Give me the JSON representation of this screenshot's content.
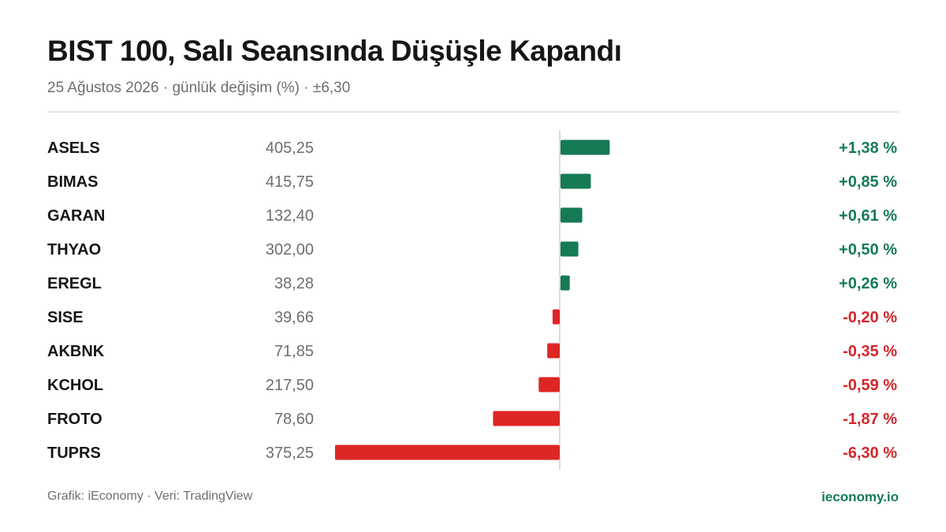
{
  "header": {
    "title": "BIST 100, Salı Seansında Düşüşle Kapandı",
    "subtitle": "25 Ağustos 2026 · günlük değişim (%) · ±6,30"
  },
  "footer": {
    "credit": "Grafik: iEconomy · Veri: TradingView",
    "brand": "ieconomy.io"
  },
  "colors": {
    "positive": "#167a54",
    "negative": "#dc2626",
    "positive_text": "#147a5c",
    "negative_text": "#d3262b",
    "axis": "#cfcfcf"
  },
  "chart_data": {
    "type": "bar",
    "orientation": "horizontal",
    "unit": "%",
    "xlim": [
      -6.3,
      6.3
    ],
    "categories": [
      "ASELS",
      "BIMAS",
      "GARAN",
      "THYAO",
      "EREGL",
      "SISE",
      "AKBNK",
      "KCHOL",
      "FROTO",
      "TUPRS"
    ],
    "prices": [
      "405,25",
      "415,75",
      "132,40",
      "302,00",
      "38,28",
      "39,66",
      "71,85",
      "217,50",
      "78,60",
      "375,25"
    ],
    "values": [
      1.38,
      0.85,
      0.61,
      0.5,
      0.26,
      -0.2,
      -0.35,
      -0.59,
      -1.87,
      -6.3
    ],
    "labels": [
      "+1,38 %",
      "+0,85 %",
      "+0,61 %",
      "+0,50 %",
      "+0,26 %",
      "-0,20 %",
      "-0,35 %",
      "-0,59 %",
      "-1,87 %",
      "-6,30 %"
    ]
  }
}
